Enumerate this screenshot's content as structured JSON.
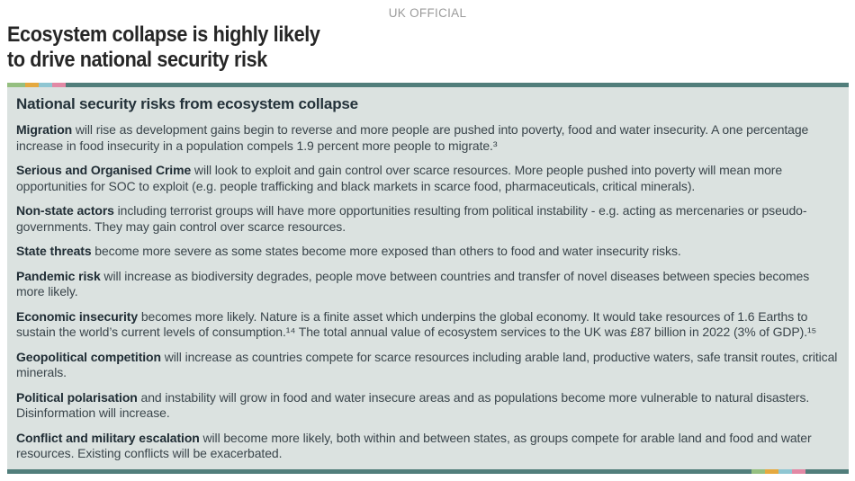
{
  "page": {
    "classification": "UK OFFICIAL",
    "title_line1": "Ecosystem collapse is highly likely",
    "title_line2": "to drive national security risk"
  },
  "panel": {
    "heading": "National security risks from ecosystem collapse",
    "colors": {
      "background": "#dbe2e0",
      "teal": "#517e7b",
      "accent_segments": [
        "#95bf80",
        "#e5a93f",
        "#8fc6d2",
        "#e289a5"
      ]
    },
    "paragraphs": [
      {
        "lead": "Migration",
        "body": " will rise as development gains begin to reverse and more people are pushed into poverty, food and water insecurity. A one percentage increase in food insecurity in a population compels 1.9 percent more people to migrate.³"
      },
      {
        "lead": "Serious and Organised Crime",
        "body": " will look to exploit and gain control over scarce resources. More people pushed into poverty will mean more opportunities for SOC to exploit (e.g. people trafficking and black markets in scarce food, pharmaceuticals, critical minerals)."
      },
      {
        "lead": "Non-state actors",
        "body": " including terrorist groups will have more opportunities resulting from political instability - e.g. acting as mercenaries or pseudo-governments. They may gain control over scarce resources."
      },
      {
        "lead": "State threats",
        "body": " become more severe as some states become more exposed than others to food and water insecurity risks."
      },
      {
        "lead": "Pandemic risk",
        "body": " will increase as biodiversity degrades, people move between countries and transfer of novel diseases between species becomes more likely."
      },
      {
        "lead": "Economic insecurity",
        "body": " becomes more likely. Nature is a finite asset which underpins the global economy. It would take resources of 1.6 Earths to sustain the world’s current levels of consumption.¹⁴ The total annual value of ecosystem services to the UK was £87 billion in 2022 (3% of GDP).¹⁵"
      },
      {
        "lead": "Geopolitical competition",
        "body": " will increase as countries compete for scarce resources including arable land, productive waters, safe transit routes, critical minerals."
      },
      {
        "lead": "Political polarisation",
        "body": " and instability will grow in food and water insecure areas and as populations become more vulnerable to natural disasters. Disinformation will increase."
      },
      {
        "lead": "Conflict and military escalation",
        "body": " will become more likely, both within and between states, as groups compete for arable land and food and water resources.  Existing conflicts will be exacerbated."
      }
    ]
  }
}
